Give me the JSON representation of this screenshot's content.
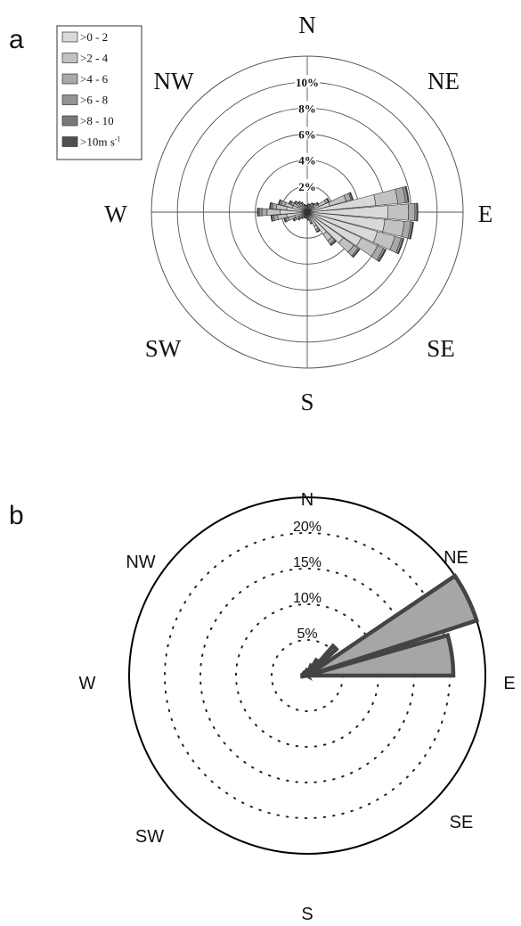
{
  "colors": {
    "speed_bins": [
      "#d9d9d9",
      "#c2c2c2",
      "#a9a9a9",
      "#939393",
      "#7a7a7a",
      "#505050"
    ],
    "panel_b_fill": "#a6a6a6",
    "panel_b_stroke": "#444444"
  },
  "chart_data": [
    {
      "panel": "a",
      "type": "windrose",
      "ring_labels": [
        "2%",
        "4%",
        "6%",
        "8%",
        "10%"
      ],
      "rings": [
        2,
        4,
        6,
        8,
        10,
        12
      ],
      "directions": [
        "N",
        "NE",
        "E",
        "SE",
        "S",
        "SW",
        "W",
        "NW"
      ],
      "legend": {
        "position": "top-left",
        "entries": [
          ">0 - 2",
          ">2 - 4",
          ">4 - 6",
          ">6 - 8",
          ">8 - 10",
          ">10m s"
        ],
        "superscript": "-1"
      },
      "sectors_deg": [
        0,
        10,
        20,
        30,
        40,
        50,
        60,
        70,
        80,
        90,
        100,
        110,
        120,
        130,
        140,
        150,
        160,
        170,
        180,
        190,
        200,
        210,
        220,
        230,
        240,
        250,
        260,
        270,
        280,
        290,
        300,
        310,
        320,
        330,
        340,
        350
      ],
      "series": [
        {
          "name": ">0 - 2",
          "values": [
            0.3,
            0.4,
            0.4,
            0.5,
            0.5,
            0.6,
            1.0,
            1.8,
            5.3,
            6.2,
            6.0,
            5.6,
            4.6,
            3.4,
            2.1,
            1.2,
            0.6,
            0.4,
            0.3,
            0.3,
            0.3,
            0.3,
            0.4,
            0.5,
            0.7,
            1.0,
            1.6,
            2.1,
            1.6,
            1.2,
            0.8,
            0.7,
            0.6,
            0.5,
            0.4,
            0.3
          ]
        },
        {
          "name": ">2 - 4",
          "values": [
            0.15,
            0.15,
            0.15,
            0.2,
            0.2,
            0.3,
            0.6,
            1.3,
            1.7,
            1.6,
            1.5,
            1.4,
            1.4,
            1.0,
            0.6,
            0.3,
            0.2,
            0.15,
            0.1,
            0.1,
            0.1,
            0.1,
            0.15,
            0.2,
            0.3,
            0.5,
            0.7,
            1.0,
            0.8,
            0.6,
            0.4,
            0.3,
            0.25,
            0.2,
            0.15,
            0.15
          ]
        },
        {
          "name": ">4 - 6",
          "values": [
            0.05,
            0.05,
            0.05,
            0.05,
            0.1,
            0.1,
            0.2,
            0.4,
            0.6,
            0.5,
            0.5,
            0.5,
            0.5,
            0.4,
            0.3,
            0.15,
            0.1,
            0.05,
            0.05,
            0.05,
            0.05,
            0.05,
            0.05,
            0.1,
            0.15,
            0.2,
            0.3,
            0.4,
            0.3,
            0.3,
            0.2,
            0.15,
            0.1,
            0.1,
            0.05,
            0.05
          ]
        },
        {
          "name": ">6 - 8",
          "values": [
            0.02,
            0.02,
            0.02,
            0.02,
            0.03,
            0.05,
            0.05,
            0.1,
            0.2,
            0.15,
            0.15,
            0.15,
            0.15,
            0.1,
            0.1,
            0.05,
            0.03,
            0.02,
            0.02,
            0.02,
            0.02,
            0.02,
            0.02,
            0.05,
            0.05,
            0.1,
            0.15,
            0.2,
            0.15,
            0.15,
            0.1,
            0.05,
            0.05,
            0.03,
            0.02,
            0.02
          ]
        },
        {
          "name": ">8 - 10",
          "values": [
            0.01,
            0.01,
            0.01,
            0.01,
            0.01,
            0.02,
            0.02,
            0.05,
            0.05,
            0.05,
            0.05,
            0.05,
            0.05,
            0.05,
            0.05,
            0.02,
            0.01,
            0.01,
            0.01,
            0.01,
            0.01,
            0.01,
            0.01,
            0.02,
            0.02,
            0.05,
            0.05,
            0.1,
            0.05,
            0.05,
            0.05,
            0.02,
            0.02,
            0.01,
            0.01,
            0.01
          ]
        },
        {
          "name": ">10m s-1",
          "values": [
            0.01,
            0.01,
            0.01,
            0.01,
            0.01,
            0.01,
            0.01,
            0.02,
            0.03,
            0.03,
            0.03,
            0.03,
            0.03,
            0.02,
            0.02,
            0.01,
            0.01,
            0.01,
            0.01,
            0.01,
            0.01,
            0.01,
            0.01,
            0.01,
            0.01,
            0.02,
            0.02,
            0.05,
            0.03,
            0.02,
            0.02,
            0.01,
            0.01,
            0.01,
            0.01,
            0.01
          ]
        }
      ]
    },
    {
      "panel": "b",
      "type": "windrose",
      "ring_labels": [
        "5%",
        "10%",
        "15%",
        "20%"
      ],
      "rings": [
        5,
        10,
        15,
        20
      ],
      "outer": 25,
      "directions": [
        "N",
        "NE",
        "E",
        "SE",
        "S",
        "SW",
        "W",
        "NW"
      ],
      "sectors": [
        {
          "from_deg": 56,
          "to_deg": 72,
          "value": 25
        },
        {
          "from_deg": 74,
          "to_deg": 90,
          "value": 20.5
        },
        {
          "from_deg": 41,
          "to_deg": 48,
          "value": 5.5
        },
        {
          "from_deg": 30,
          "to_deg": 40,
          "value": 2.5
        },
        {
          "from_deg": 20,
          "to_deg": 30,
          "value": 1.5
        },
        {
          "from_deg": 0,
          "to_deg": 20,
          "value": 0.8
        },
        {
          "from_deg": 260,
          "to_deg": 275,
          "value": 0.7
        },
        {
          "from_deg": 300,
          "to_deg": 330,
          "value": 0.6
        }
      ]
    }
  ],
  "panels": {
    "a": {
      "letter": "a",
      "dirs": {
        "N": "N",
        "NE": "NE",
        "E": "E",
        "SE": "SE",
        "S": "S",
        "SW": "SW",
        "W": "W",
        "NW": "NW"
      }
    },
    "b": {
      "letter": "b",
      "dirs": {
        "N": "N",
        "NE": "NE",
        "E": "E",
        "SE": "SE",
        "S": "S",
        "SW": "SW",
        "W": "W",
        "NW": "NW"
      }
    }
  }
}
